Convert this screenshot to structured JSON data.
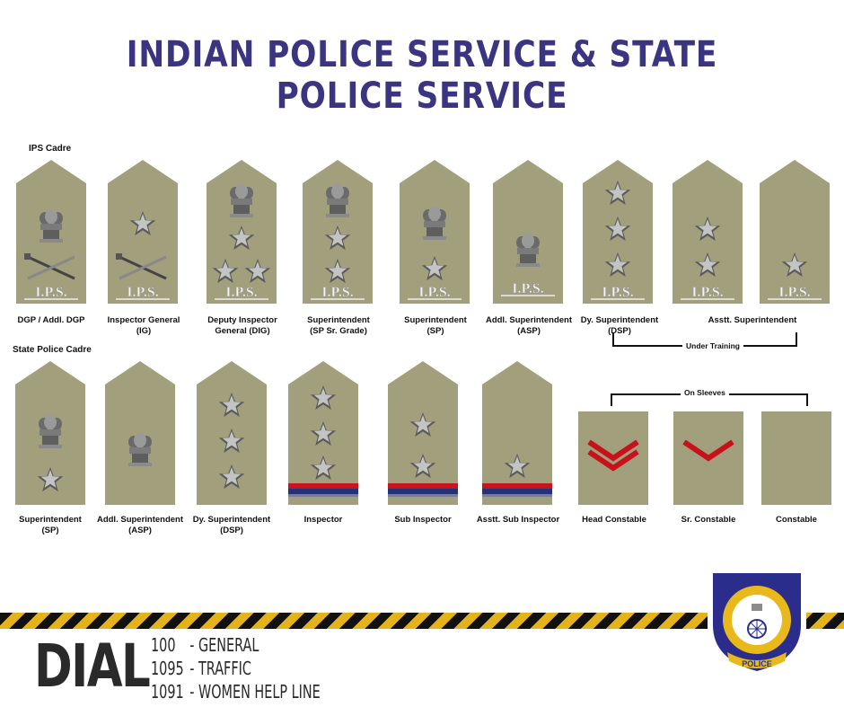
{
  "title": "INDIAN POLICE SERVICE & STATE POLICE SERVICE",
  "ips_cadre_label": "IPS Cadre",
  "state_cadre_label": "State Police Cadre",
  "ips_text": "I.P.S.",
  "ips_ranks": [
    {
      "caption": "DGP / Addl. DGP"
    },
    {
      "caption": "Inspector General\n(IG)"
    },
    {
      "caption": "Deputy Inspector\nGeneral (DIG)"
    },
    {
      "caption": "Superintendent\n(SP Sr. Grade)"
    },
    {
      "caption": "Superintendent\n(SP)"
    },
    {
      "caption": "Addl. Superintendent\n(ASP)"
    },
    {
      "caption": "Dy. Superintendent\n(DSP)"
    },
    {
      "caption": "Asstt. Superintendent"
    }
  ],
  "under_training": "Under Training",
  "on_sleeves": "On Sleeves",
  "state_ranks": [
    {
      "caption": "Superintendent\n(SP)"
    },
    {
      "caption": "Addl. Superintendent\n(ASP)"
    },
    {
      "caption": "Dy. Superintendent\n(DSP)"
    },
    {
      "caption": "Inspector"
    },
    {
      "caption": "Sub Inspector"
    },
    {
      "caption": "Asstt. Sub Inspector"
    },
    {
      "caption": "Head Constable"
    },
    {
      "caption": "Sr. Constable"
    },
    {
      "caption": "Constable"
    }
  ],
  "dial": {
    "word": "DIAL",
    "lines": [
      {
        "number": "100",
        "label": "- GENERAL"
      },
      {
        "number": "1095",
        "label": "- TRAFFIC"
      },
      {
        "number": "1091",
        "label": "- WOMEN HELP LINE"
      }
    ]
  },
  "badge": {
    "police_text": "POLICE"
  },
  "colors": {
    "title": "#3b3480",
    "khaki": "#a29f7c",
    "chevron": "#c8121b",
    "ribbon_red": "#c8141c",
    "ribbon_blue": "#22337c",
    "hazard_yellow": "#e4b21a"
  }
}
